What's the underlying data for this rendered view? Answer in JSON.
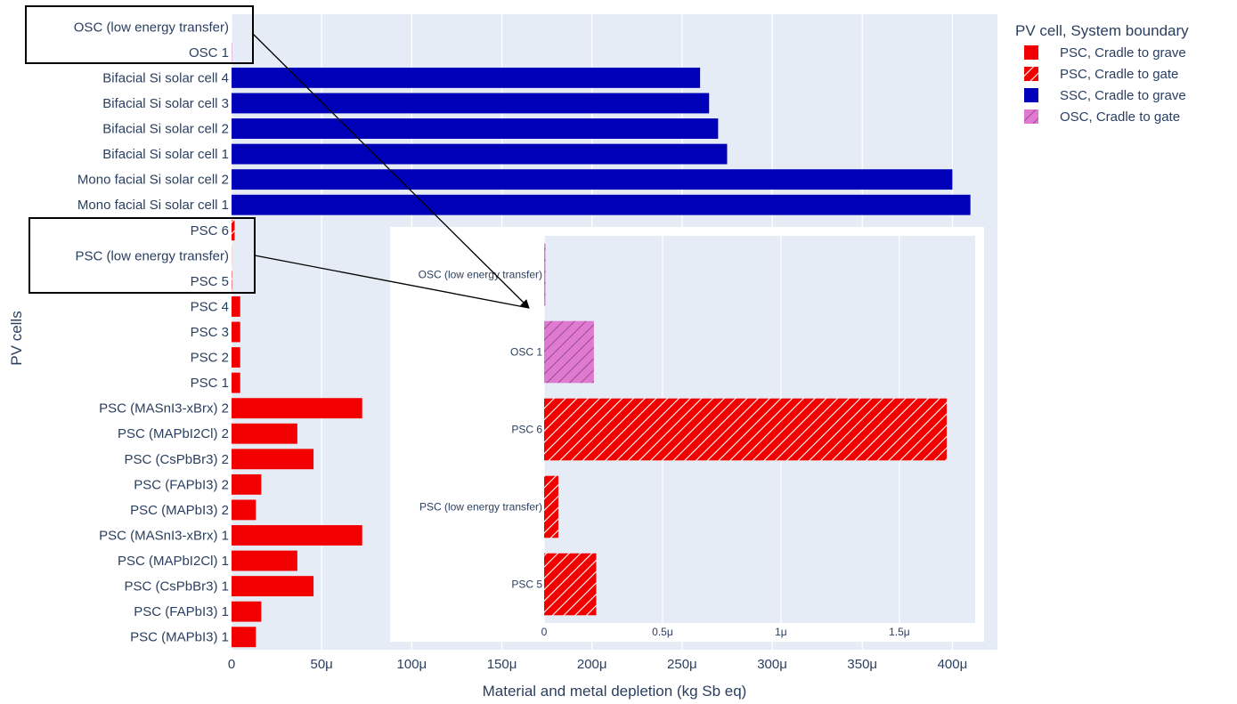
{
  "chart_data": [
    {
      "type": "bar",
      "orientation": "horizontal",
      "categories": [
        "PSC (MAPbI3) 1",
        "PSC (FAPbI3) 1",
        "PSC (CsPbBr3) 1",
        "PSC (MAPbI2Cl) 1",
        "PSC (MASnI3-xBrx) 1",
        "PSC (MAPbI3) 2",
        "PSC (FAPbI3) 2",
        "PSC (CsPbBr3) 2",
        "PSC (MAPbI2Cl) 2",
        "PSC (MASnI3-xBrx) 2",
        "PSC 1",
        "PSC 2",
        "PSC 3",
        "PSC 4",
        "PSC 5",
        "PSC (low energy transfer)",
        "PSC 6",
        "Mono facial Si solar cell 1",
        "Mono facial Si solar cell 2",
        "Bifacial Si solar cell 1",
        "Bifacial Si solar cell 2",
        "Bifacial Si solar cell 3",
        "Bifacial Si solar cell 4",
        "OSC 1",
        "OSC (low energy transfer)"
      ],
      "values": [
        1.35e-05,
        1.65e-05,
        4.55e-05,
        3.65e-05,
        7.25e-05,
        1.35e-05,
        1.65e-05,
        4.55e-05,
        3.65e-05,
        7.25e-05,
        4.8e-06,
        4.8e-06,
        4.8e-06,
        4.8e-06,
        2.2e-07,
        6e-08,
        1.7e-06,
        0.00041,
        0.0004,
        0.000275,
        0.00027,
        0.000265,
        0.00026,
        2.1e-07,
        5e-09
      ],
      "groups": [
        "PSC, Cradle to grave",
        "PSC, Cradle to grave",
        "PSC, Cradle to grave",
        "PSC, Cradle to grave",
        "PSC, Cradle to grave",
        "PSC, Cradle to grave",
        "PSC, Cradle to grave",
        "PSC, Cradle to grave",
        "PSC, Cradle to grave",
        "PSC, Cradle to grave",
        "PSC, Cradle to grave",
        "PSC, Cradle to grave",
        "PSC, Cradle to grave",
        "PSC, Cradle to grave",
        "PSC, Cradle to gate",
        "PSC, Cradle to gate",
        "PSC, Cradle to gate",
        "SSC, Cradle to grave",
        "SSC, Cradle to grave",
        "SSC, Cradle to grave",
        "SSC, Cradle to grave",
        "SSC, Cradle to grave",
        "SSC, Cradle to grave",
        "OSC, Cradle to gate",
        "OSC, Cradle to gate"
      ],
      "xlabel": "Material and metal depletion (kg Sb eq)",
      "ylabel": "PV cells",
      "xlim": [
        0,
        0.000425
      ],
      "xticks": [
        0,
        5e-05,
        0.0001,
        0.00015,
        0.0002,
        0.00025,
        0.0003,
        0.00035,
        0.0004
      ],
      "xtick_labels": [
        "0",
        "50μ",
        "100μ",
        "150μ",
        "200μ",
        "250μ",
        "300μ",
        "350μ",
        "400μ"
      ],
      "grid": true,
      "legend_placement": "top-right",
      "legend_title": "PV cell, System boundary",
      "legend": [
        {
          "name": "PSC, Cradle to grave",
          "color": "#f20000",
          "pattern": "solid"
        },
        {
          "name": "PSC, Cradle to gate",
          "color": "#f20000",
          "pattern": "hatch"
        },
        {
          "name": "SSC, Cradle to grave",
          "color": "#0000b8",
          "pattern": "solid"
        },
        {
          "name": "OSC, Cradle to gate",
          "color": "#e07ad0",
          "pattern": "hatch"
        }
      ]
    },
    {
      "type": "bar",
      "orientation": "horizontal",
      "role": "inset zoom",
      "categories": [
        "PSC 5",
        "PSC (low energy transfer)",
        "PSC 6",
        "OSC 1",
        "OSC (low energy transfer)"
      ],
      "values": [
        2.2e-07,
        6e-08,
        1.7e-06,
        2.1e-07,
        5e-09
      ],
      "groups": [
        "PSC, Cradle to gate",
        "PSC, Cradle to gate",
        "PSC, Cradle to gate",
        "OSC, Cradle to gate",
        "OSC, Cradle to gate"
      ],
      "xlim": [
        0,
        1.82e-06
      ],
      "xticks": [
        0,
        5e-07,
        1e-06,
        1.5e-06
      ],
      "xtick_labels": [
        "0",
        "0.5μ",
        "1μ",
        "1.5μ"
      ],
      "grid": true
    }
  ],
  "colors": {
    "plot_bg": "#e5ecf6",
    "psc": "#f20000",
    "ssc": "#0000b8",
    "osc": "#e07ad0",
    "text": "#2a3f5f"
  }
}
